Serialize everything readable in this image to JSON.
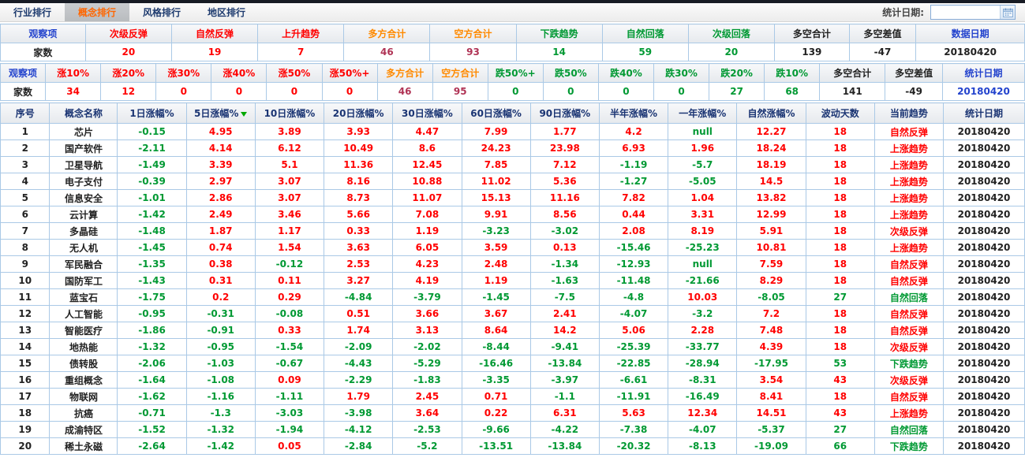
{
  "tabs": {
    "items": [
      {
        "name": "industry-ranking",
        "label": "行业排行",
        "active": false
      },
      {
        "name": "concept-ranking",
        "label": "概念排行",
        "active": true
      },
      {
        "name": "style-ranking",
        "label": "风格排行",
        "active": false
      },
      {
        "name": "region-ranking",
        "label": "地区排行",
        "active": false
      }
    ]
  },
  "toolbar": {
    "stats_date_label": "统计日期:",
    "stats_date_value": ""
  },
  "colors": {
    "red": "#ff0000",
    "green": "#009933",
    "orange": "#ff8a00",
    "blue": "#2343cd",
    "black": "#222222",
    "maroon": "#b03355",
    "header_navy": "#1a3473",
    "sort_arrow": "#00a800",
    "active_tab_text": "#ff6600"
  },
  "summary_trend_table": {
    "headers": [
      {
        "label": "观察项",
        "color": "blue"
      },
      {
        "label": "次级反弹",
        "color": "red"
      },
      {
        "label": "自然反弹",
        "color": "red"
      },
      {
        "label": "上升趋势",
        "color": "red"
      },
      {
        "label": "多方合计",
        "color": "orange"
      },
      {
        "label": "空方合计",
        "color": "orange"
      },
      {
        "label": "下跌趋势",
        "color": "green"
      },
      {
        "label": "自然回落",
        "color": "green"
      },
      {
        "label": "次级回落",
        "color": "green"
      },
      {
        "label": "多空合计",
        "color": "black"
      },
      {
        "label": "多空差值",
        "color": "black"
      },
      {
        "label": "数据日期",
        "color": "blue"
      }
    ],
    "row": [
      {
        "text": "家数",
        "color": "black"
      },
      {
        "text": "20",
        "color": "red"
      },
      {
        "text": "19",
        "color": "red"
      },
      {
        "text": "7",
        "color": "red"
      },
      {
        "text": "46",
        "color": "maroon"
      },
      {
        "text": "93",
        "color": "maroon"
      },
      {
        "text": "14",
        "color": "green"
      },
      {
        "text": "59",
        "color": "green"
      },
      {
        "text": "20",
        "color": "green"
      },
      {
        "text": "139",
        "color": "black"
      },
      {
        "text": "-47",
        "color": "black"
      },
      {
        "text": "20180420",
        "color": "black"
      }
    ]
  },
  "summary_updown_table": {
    "headers": [
      {
        "label": "观察项",
        "color": "blue"
      },
      {
        "label": "涨10%",
        "color": "red"
      },
      {
        "label": "涨20%",
        "color": "red"
      },
      {
        "label": "涨30%",
        "color": "red"
      },
      {
        "label": "涨40%",
        "color": "red"
      },
      {
        "label": "涨50%",
        "color": "red"
      },
      {
        "label": "涨50%+",
        "color": "red"
      },
      {
        "label": "多方合计",
        "color": "orange"
      },
      {
        "label": "空方合计",
        "color": "orange"
      },
      {
        "label": "跌50%+",
        "color": "green"
      },
      {
        "label": "跌50%",
        "color": "green"
      },
      {
        "label": "跌40%",
        "color": "green"
      },
      {
        "label": "跌30%",
        "color": "green"
      },
      {
        "label": "跌20%",
        "color": "green"
      },
      {
        "label": "跌10%",
        "color": "green"
      },
      {
        "label": "多空合计",
        "color": "black"
      },
      {
        "label": "多空差值",
        "color": "black"
      },
      {
        "label": "统计日期",
        "color": "blue"
      }
    ],
    "row": [
      {
        "text": "家数",
        "color": "black"
      },
      {
        "text": "34",
        "color": "red"
      },
      {
        "text": "12",
        "color": "red"
      },
      {
        "text": "0",
        "color": "red"
      },
      {
        "text": "0",
        "color": "red"
      },
      {
        "text": "0",
        "color": "red"
      },
      {
        "text": "0",
        "color": "red"
      },
      {
        "text": "46",
        "color": "maroon"
      },
      {
        "text": "95",
        "color": "maroon"
      },
      {
        "text": "0",
        "color": "green"
      },
      {
        "text": "0",
        "color": "green"
      },
      {
        "text": "0",
        "color": "green"
      },
      {
        "text": "0",
        "color": "green"
      },
      {
        "text": "27",
        "color": "green"
      },
      {
        "text": "68",
        "color": "green"
      },
      {
        "text": "141",
        "color": "black"
      },
      {
        "text": "-49",
        "color": "black"
      },
      {
        "text": "20180420",
        "color": "blue"
      }
    ]
  },
  "main_table": {
    "columns": [
      {
        "label": "序号"
      },
      {
        "label": "概念名称"
      },
      {
        "label": "1日涨幅%"
      },
      {
        "label": "5日涨幅%",
        "sorted": "desc"
      },
      {
        "label": "10日涨幅%"
      },
      {
        "label": "20日涨幅%"
      },
      {
        "label": "30日涨幅%"
      },
      {
        "label": "60日涨幅%"
      },
      {
        "label": "90日涨幅%"
      },
      {
        "label": "半年涨幅%"
      },
      {
        "label": "一年涨幅%"
      },
      {
        "label": "自然涨幅%"
      },
      {
        "label": "波动天数"
      },
      {
        "label": "当前趋势"
      },
      {
        "label": "统计日期"
      }
    ],
    "trend_colors": {
      "上涨趋势": "red",
      "自然反弹": "red",
      "次级反弹": "red",
      "自然回落": "green",
      "下跌趋势": "green",
      "次级回落": "green"
    },
    "rows": [
      [
        "1",
        "芯片",
        "-0.15",
        "4.95",
        "3.89",
        "3.93",
        "4.47",
        "7.99",
        "1.77",
        "4.2",
        "null",
        "12.27",
        "18",
        "自然反弹",
        "20180420"
      ],
      [
        "2",
        "国产软件",
        "-2.11",
        "4.14",
        "6.12",
        "10.49",
        "8.6",
        "24.23",
        "23.98",
        "6.93",
        "1.96",
        "18.24",
        "18",
        "上涨趋势",
        "20180420"
      ],
      [
        "3",
        "卫星导航",
        "-1.49",
        "3.39",
        "5.1",
        "11.36",
        "12.45",
        "7.85",
        "7.12",
        "-1.19",
        "-5.7",
        "18.19",
        "18",
        "上涨趋势",
        "20180420"
      ],
      [
        "4",
        "电子支付",
        "-0.39",
        "2.97",
        "3.07",
        "8.16",
        "10.88",
        "11.02",
        "5.36",
        "-1.27",
        "-5.05",
        "14.5",
        "18",
        "上涨趋势",
        "20180420"
      ],
      [
        "5",
        "信息安全",
        "-1.01",
        "2.86",
        "3.07",
        "8.73",
        "11.07",
        "15.13",
        "11.16",
        "7.82",
        "1.04",
        "13.82",
        "18",
        "上涨趋势",
        "20180420"
      ],
      [
        "6",
        "云计算",
        "-1.42",
        "2.49",
        "3.46",
        "5.66",
        "7.08",
        "9.91",
        "8.56",
        "0.44",
        "3.31",
        "12.99",
        "18",
        "上涨趋势",
        "20180420"
      ],
      [
        "7",
        "多晶硅",
        "-1.48",
        "1.87",
        "1.17",
        "0.33",
        "1.19",
        "-3.23",
        "-3.02",
        "2.08",
        "8.19",
        "5.91",
        "18",
        "次级反弹",
        "20180420"
      ],
      [
        "8",
        "无人机",
        "-1.45",
        "0.74",
        "1.54",
        "3.63",
        "6.05",
        "3.59",
        "0.13",
        "-15.46",
        "-25.23",
        "10.81",
        "18",
        "上涨趋势",
        "20180420"
      ],
      [
        "9",
        "军民融合",
        "-1.35",
        "0.38",
        "-0.12",
        "2.53",
        "4.23",
        "2.48",
        "-1.34",
        "-12.93",
        "null",
        "7.59",
        "18",
        "自然反弹",
        "20180420"
      ],
      [
        "10",
        "国防军工",
        "-1.43",
        "0.31",
        "0.11",
        "3.27",
        "4.19",
        "1.19",
        "-1.63",
        "-11.48",
        "-21.66",
        "8.29",
        "18",
        "自然反弹",
        "20180420"
      ],
      [
        "11",
        "蓝宝石",
        "-1.75",
        "0.2",
        "0.29",
        "-4.84",
        "-3.79",
        "-1.45",
        "-7.5",
        "-4.8",
        "10.03",
        "-8.05",
        "27",
        "自然回落",
        "20180420"
      ],
      [
        "12",
        "人工智能",
        "-0.95",
        "-0.31",
        "-0.08",
        "0.51",
        "3.66",
        "3.67",
        "2.41",
        "-4.07",
        "-3.2",
        "7.2",
        "18",
        "自然反弹",
        "20180420"
      ],
      [
        "13",
        "智能医疗",
        "-1.86",
        "-0.91",
        "0.33",
        "1.74",
        "3.13",
        "8.64",
        "14.2",
        "5.06",
        "2.28",
        "7.48",
        "18",
        "自然反弹",
        "20180420"
      ],
      [
        "14",
        "地热能",
        "-1.32",
        "-0.95",
        "-1.54",
        "-2.09",
        "-2.02",
        "-8.44",
        "-9.41",
        "-25.39",
        "-33.77",
        "4.39",
        "18",
        "次级反弹",
        "20180420"
      ],
      [
        "15",
        "债转股",
        "-2.06",
        "-1.03",
        "-0.67",
        "-4.43",
        "-5.29",
        "-16.46",
        "-13.84",
        "-22.85",
        "-28.94",
        "-17.95",
        "53",
        "下跌趋势",
        "20180420"
      ],
      [
        "16",
        "重组概念",
        "-1.64",
        "-1.08",
        "0.09",
        "-2.29",
        "-1.83",
        "-3.35",
        "-3.97",
        "-6.61",
        "-8.31",
        "3.54",
        "43",
        "次级反弹",
        "20180420"
      ],
      [
        "17",
        "物联网",
        "-1.62",
        "-1.16",
        "-1.11",
        "1.79",
        "2.45",
        "0.71",
        "-1.1",
        "-11.91",
        "-16.49",
        "8.41",
        "18",
        "自然反弹",
        "20180420"
      ],
      [
        "18",
        "抗癌",
        "-0.71",
        "-1.3",
        "-3.03",
        "-3.98",
        "3.64",
        "0.22",
        "6.31",
        "5.63",
        "12.34",
        "14.51",
        "43",
        "上涨趋势",
        "20180420"
      ],
      [
        "19",
        "成渝特区",
        "-1.52",
        "-1.32",
        "-1.94",
        "-4.12",
        "-2.53",
        "-9.66",
        "-4.22",
        "-7.38",
        "-4.07",
        "-5.37",
        "27",
        "自然回落",
        "20180420"
      ],
      [
        "20",
        "稀土永磁",
        "-2.64",
        "-1.42",
        "0.05",
        "-2.84",
        "-5.2",
        "-13.51",
        "-13.84",
        "-20.32",
        "-8.13",
        "-19.09",
        "66",
        "下跌趋势",
        "20180420"
      ]
    ]
  }
}
